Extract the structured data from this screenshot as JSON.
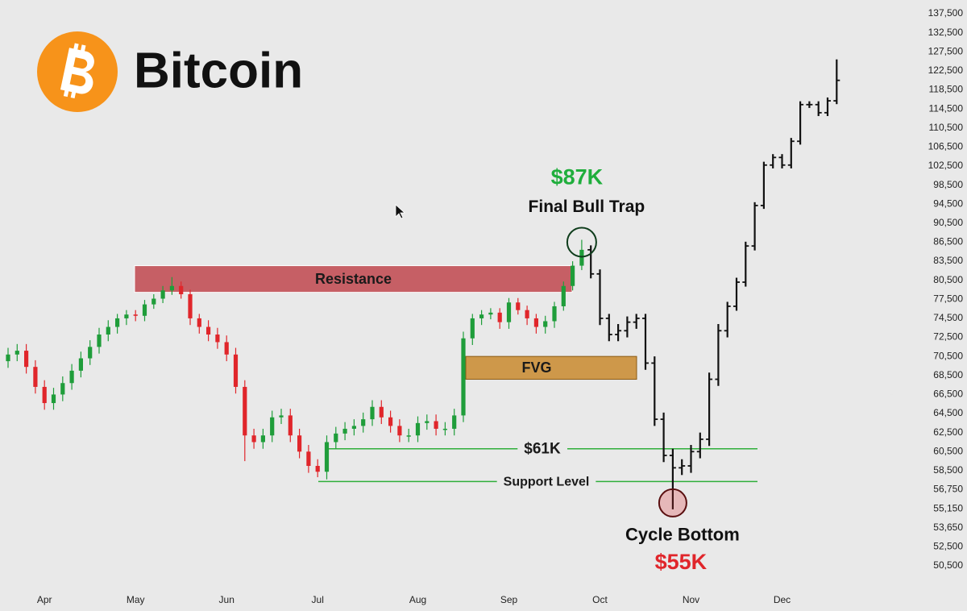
{
  "chart_data": {
    "type": "candlestick",
    "title": "Bitcoin",
    "categories": [
      null,
      null,
      null,
      null,
      "Apr",
      null,
      null,
      null,
      null,
      null,
      null,
      null,
      null,
      null,
      "May",
      null,
      null,
      null,
      null,
      null,
      null,
      null,
      null,
      null,
      "Jun",
      null,
      null,
      null,
      null,
      null,
      null,
      null,
      null,
      null,
      "Jul",
      null,
      null,
      null,
      null,
      null,
      null,
      null,
      null,
      null,
      null,
      "Aug",
      null,
      null,
      null,
      null,
      null,
      null,
      null,
      null,
      null,
      "Sep",
      null,
      null,
      null,
      null,
      null,
      null,
      null,
      null,
      null,
      "Oct",
      null,
      null,
      null,
      null,
      null,
      null,
      null,
      null,
      null,
      "Nov",
      null,
      null,
      null,
      null,
      null,
      null,
      null,
      null,
      null,
      "Dec",
      null,
      null,
      null,
      null,
      null,
      null
    ],
    "open": [
      70000,
      70700,
      71100,
      69400,
      67300,
      65600,
      66500,
      67700,
      69000,
      70300,
      71500,
      72800,
      73600,
      74500,
      75100,
      74900,
      76700,
      77600,
      78900,
      79600,
      78300,
      74500,
      73600,
      72800,
      72000,
      70700,
      67300,
      62200,
      61500,
      62200,
      64100,
      64300,
      62200,
      60500,
      59000,
      58400,
      61500,
      62400,
      62900,
      63200,
      63900,
      65200,
      64100,
      63200,
      62200,
      62200,
      63500,
      63700,
      62900,
      62900,
      64300,
      72400,
      74500,
      75100,
      75400,
      74100,
      77000,
      75800,
      74500,
      73600,
      74200,
      76400,
      79600,
      82800,
      85300,
      81500,
      74500,
      72800,
      73200,
      74100,
      74500,
      69800,
      63900,
      60100,
      58800,
      59000,
      60500,
      61800,
      68100,
      73200,
      76400,
      80200,
      85900,
      94200,
      102700,
      104300,
      102700,
      107700,
      115400,
      115400,
      113700,
      116200
    ],
    "high": [
      71400,
      71800,
      71800,
      70100,
      68000,
      67200,
      68400,
      69700,
      71000,
      72200,
      73500,
      74300,
      75200,
      75800,
      75800,
      77400,
      78300,
      79600,
      81000,
      80300,
      79000,
      75200,
      74300,
      73500,
      72700,
      71400,
      68000,
      62900,
      62900,
      64800,
      65000,
      65000,
      62900,
      61200,
      59700,
      62200,
      63100,
      63600,
      63900,
      64600,
      65900,
      65900,
      64800,
      63900,
      62900,
      64200,
      64400,
      64400,
      63600,
      65000,
      73100,
      75200,
      75800,
      76100,
      76100,
      77700,
      77700,
      76500,
      75200,
      74900,
      77100,
      80300,
      83500,
      87000,
      86000,
      82200,
      75200,
      73900,
      74800,
      75200,
      75200,
      70500,
      64600,
      60800,
      59700,
      61200,
      62500,
      68800,
      73900,
      77100,
      80900,
      86600,
      94900,
      103400,
      105000,
      105000,
      108400,
      116100,
      116100,
      116100,
      116900,
      125500
    ],
    "low": [
      69300,
      70000,
      68700,
      66600,
      64900,
      64900,
      65800,
      67000,
      68300,
      69600,
      70800,
      72100,
      72900,
      73800,
      74200,
      74200,
      76000,
      76900,
      78200,
      77600,
      73800,
      72900,
      72100,
      71300,
      70000,
      66600,
      59500,
      60800,
      60800,
      61500,
      63400,
      61500,
      59800,
      58300,
      57900,
      57700,
      60800,
      61700,
      62200,
      62500,
      63200,
      63400,
      62500,
      61500,
      61500,
      61500,
      62800,
      62200,
      62200,
      62200,
      63600,
      71700,
      73800,
      74400,
      73400,
      73400,
      75100,
      73800,
      72900,
      72900,
      73500,
      75700,
      78900,
      82100,
      80800,
      73800,
      72100,
      72100,
      72500,
      73400,
      69100,
      63200,
      59400,
      55100,
      58100,
      58300,
      59800,
      61100,
      67400,
      72500,
      75700,
      79500,
      85200,
      93500,
      102000,
      102000,
      102000,
      107000,
      114700,
      113000,
      113000,
      115500
    ],
    "close": [
      70700,
      71100,
      69400,
      67300,
      65600,
      66500,
      67700,
      69000,
      70300,
      71500,
      72800,
      73600,
      74500,
      75100,
      74900,
      76700,
      77600,
      78900,
      79600,
      78300,
      74500,
      73600,
      72800,
      72000,
      70700,
      67300,
      62200,
      61500,
      62200,
      64100,
      64300,
      62200,
      60500,
      59000,
      58400,
      61500,
      62400,
      62900,
      63200,
      63900,
      65200,
      64100,
      63200,
      62200,
      62200,
      63500,
      63700,
      62900,
      62900,
      64300,
      72400,
      74500,
      75100,
      75400,
      74100,
      77000,
      75800,
      74500,
      73600,
      74200,
      76400,
      79600,
      82800,
      85300,
      81500,
      74500,
      72800,
      73200,
      74100,
      74500,
      69800,
      63900,
      60100,
      58800,
      59000,
      60500,
      61800,
      68100,
      73200,
      76400,
      80200,
      85900,
      94200,
      102700,
      104300,
      102700,
      107700,
      115400,
      115400,
      113700,
      116200,
      120500
    ],
    "up_color": "#1f9d3a",
    "down_color": "#e0262b",
    "ohlc_color": "#111111",
    "ylim": [
      50500,
      137500
    ],
    "yticks": [
      {
        "value": 50500,
        "label": "50,500"
      },
      {
        "value": 52500,
        "label": "52,500"
      },
      {
        "value": 53650,
        "label": "53,650"
      },
      {
        "value": 55150,
        "label": "55,150"
      },
      {
        "value": 56750,
        "label": "56,750"
      },
      {
        "value": 58500,
        "label": "58,500"
      },
      {
        "value": 60500,
        "label": "60,500"
      },
      {
        "value": 62500,
        "label": "62,500"
      },
      {
        "value": 64500,
        "label": "64,500"
      },
      {
        "value": 66500,
        "label": "66,500"
      },
      {
        "value": 68500,
        "label": "68,500"
      },
      {
        "value": 70500,
        "label": "70,500"
      },
      {
        "value": 72500,
        "label": "72,500"
      },
      {
        "value": 74500,
        "label": "74,500"
      },
      {
        "value": 77500,
        "label": "77,500"
      },
      {
        "value": 80500,
        "label": "80,500"
      },
      {
        "value": 83500,
        "label": "83,500"
      },
      {
        "value": 86500,
        "label": "86,500"
      },
      {
        "value": 90500,
        "label": "90,500"
      },
      {
        "value": 94500,
        "label": "94,500"
      },
      {
        "value": 98500,
        "label": "98,500"
      },
      {
        "value": 102500,
        "label": "102,500"
      },
      {
        "value": 106500,
        "label": "106,500"
      },
      {
        "value": 110500,
        "label": "110,500"
      },
      {
        "value": 114500,
        "label": "114,500"
      },
      {
        "value": 118500,
        "label": "118,500"
      },
      {
        "value": 122500,
        "label": "122,500"
      },
      {
        "value": 127500,
        "label": "127,500"
      },
      {
        "value": 132500,
        "label": "132,500"
      },
      {
        "value": 137500,
        "label": "137,500"
      }
    ],
    "zones": [
      {
        "label": "Resistance",
        "range": [
          78600,
          82800
        ],
        "color": "#c0474d"
      },
      {
        "label": "FVG",
        "range": [
          68100,
          70500
        ],
        "color": "#c98a2e"
      }
    ],
    "levels": [
      {
        "label": "$61K",
        "value": 60800,
        "color": "#2fae3a"
      },
      {
        "label": "Support Level",
        "value": 57500,
        "color": "#2fae3a"
      }
    ],
    "annotations": [
      {
        "text": "$87K",
        "caption": "Final Bull Trap",
        "color": "#1fae3c"
      },
      {
        "text": "$55K",
        "caption": "Cycle Bottom",
        "color": "#e0262b"
      }
    ]
  }
}
